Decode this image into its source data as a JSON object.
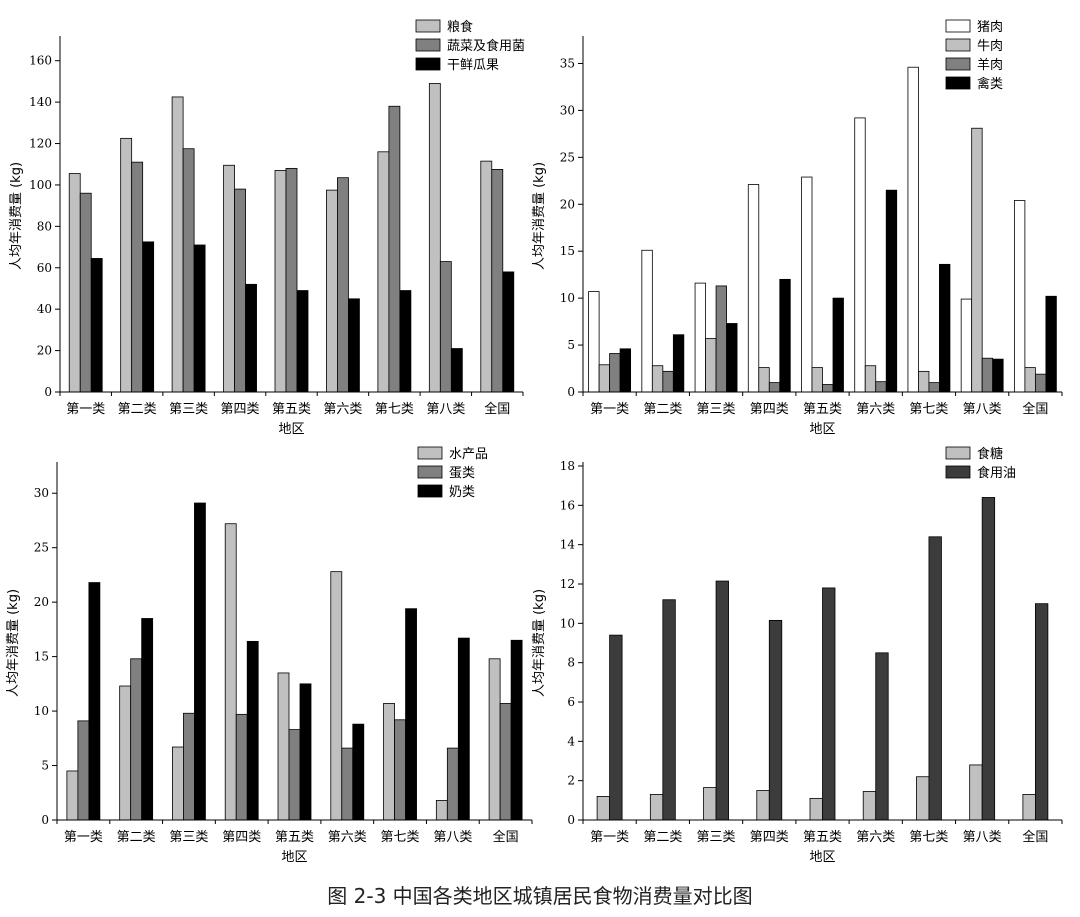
{
  "caption": "图 2-3 中国各类地区城镇居民食物消费量对比图",
  "chart_data": [
    {
      "type": "bar",
      "title": "",
      "xlabel": "地区",
      "ylabel": "人均年消费量 (kg)",
      "ylim": [
        0,
        170
      ],
      "yticks": [
        0,
        20,
        40,
        60,
        80,
        100,
        120,
        140,
        160
      ],
      "legend_position": "top-right",
      "categories": [
        "第一类",
        "第二类",
        "第三类",
        "第四类",
        "第五类",
        "第六类",
        "第七类",
        "第八类",
        "全国"
      ],
      "series": [
        {
          "name": "粮食",
          "color": "#c0c0c0",
          "values": [
            105.5,
            122.5,
            142.5,
            109.5,
            107,
            97.5,
            116,
            149,
            111.5
          ]
        },
        {
          "name": "蔬菜及食用菌",
          "color": "#808080",
          "values": [
            96,
            111,
            117.5,
            98,
            108,
            103.5,
            138,
            63,
            107.5
          ]
        },
        {
          "name": "干鲜瓜果",
          "color": "#000000",
          "values": [
            64.5,
            72.5,
            71,
            52,
            49,
            45,
            49,
            21,
            58
          ]
        }
      ]
    },
    {
      "type": "bar",
      "title": "",
      "xlabel": "地区",
      "ylabel": "人均年消费量 (kg)",
      "ylim": [
        0,
        37.5
      ],
      "yticks": [
        0,
        5,
        10,
        15,
        20,
        25,
        30,
        35
      ],
      "legend_position": "top-right",
      "categories": [
        "第一类",
        "第二类",
        "第三类",
        "第四类",
        "第五类",
        "第六类",
        "第七类",
        "第八类",
        "全国"
      ],
      "series": [
        {
          "name": "猪肉",
          "color": "#ffffff",
          "values": [
            10.7,
            15.1,
            11.6,
            22.1,
            22.9,
            29.2,
            34.6,
            9.9,
            20.4
          ]
        },
        {
          "name": "牛肉",
          "color": "#c0c0c0",
          "values": [
            2.9,
            2.8,
            5.7,
            2.6,
            2.6,
            2.8,
            2.2,
            28.1,
            2.6
          ]
        },
        {
          "name": "羊肉",
          "color": "#808080",
          "values": [
            4.1,
            2.2,
            11.3,
            1,
            0.8,
            1.1,
            1,
            3.6,
            1.9
          ]
        },
        {
          "name": "禽类",
          "color": "#000000",
          "values": [
            4.6,
            6.1,
            7.3,
            12,
            10,
            21.5,
            13.6,
            3.5,
            10.2
          ]
        }
      ]
    },
    {
      "type": "bar",
      "title": "",
      "xlabel": "地区",
      "ylabel": "人均年消费量 (kg)",
      "ylim": [
        0,
        32.5
      ],
      "yticks": [
        0,
        5,
        10,
        15,
        20,
        25,
        30
      ],
      "legend_position": "top-right",
      "categories": [
        "第一类",
        "第二类",
        "第三类",
        "第四类",
        "第五类",
        "第六类",
        "第七类",
        "第八类",
        "全国"
      ],
      "series": [
        {
          "name": "水产品",
          "color": "#c0c0c0",
          "values": [
            4.5,
            12.3,
            6.7,
            27.2,
            13.5,
            22.8,
            10.7,
            1.8,
            14.8
          ]
        },
        {
          "name": "蛋类",
          "color": "#808080",
          "values": [
            9.1,
            14.8,
            9.8,
            9.7,
            8.3,
            6.6,
            9.2,
            6.6,
            10.7
          ]
        },
        {
          "name": "奶类",
          "color": "#000000",
          "values": [
            21.8,
            18.5,
            29.1,
            16.4,
            12.5,
            8.8,
            19.4,
            16.7,
            16.5
          ]
        }
      ]
    },
    {
      "type": "bar",
      "title": "",
      "xlabel": "地区",
      "ylabel": "人均年消费量 (kg)",
      "ylim": [
        0,
        18
      ],
      "yticks": [
        0,
        2,
        4,
        6,
        8,
        10,
        12,
        14,
        16,
        18
      ],
      "legend_position": "top-left",
      "categories": [
        "第一类",
        "第二类",
        "第三类",
        "第四类",
        "第五类",
        "第六类",
        "第七类",
        "第八类",
        "全国"
      ],
      "series": [
        {
          "name": "食糖",
          "color": "#c0c0c0",
          "values": [
            1.2,
            1.3,
            1.65,
            1.5,
            1.1,
            1.45,
            2.2,
            2.8,
            1.3
          ]
        },
        {
          "name": "食用油",
          "color": "#3c3c3c",
          "values": [
            9.4,
            11.2,
            12.15,
            10.15,
            11.8,
            8.5,
            14.4,
            16.4,
            11
          ]
        }
      ]
    }
  ]
}
